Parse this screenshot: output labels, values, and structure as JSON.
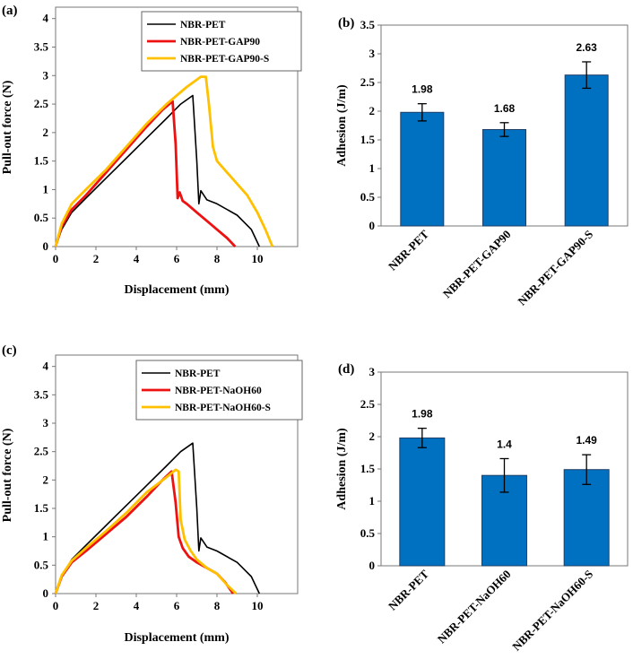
{
  "chart_data": [
    {
      "type": "line",
      "panel_label": "(a)",
      "xlabel": "Displacement (mm)",
      "ylabel": "Pull-out force (N)",
      "xlim": [
        0,
        12
      ],
      "ylim": [
        0,
        4.2
      ],
      "xticks": [
        "0",
        "2",
        "4",
        "6",
        "8",
        "10"
      ],
      "yticks": [
        "0",
        "0.5",
        "1",
        "1.5",
        "2",
        "2.5",
        "3",
        "3.5",
        "4"
      ],
      "series": [
        {
          "name": "NBR-PET",
          "color": "#000000",
          "x": [
            0,
            0.3,
            0.8,
            1.5,
            2.5,
            3.5,
            4.5,
            5.5,
            6.2,
            6.8,
            7.0,
            7.1,
            7.2,
            7.5,
            8.0,
            9.0,
            9.7,
            10.1
          ],
          "y": [
            0,
            0.3,
            0.6,
            0.85,
            1.2,
            1.55,
            1.9,
            2.25,
            2.5,
            2.65,
            1.5,
            0.75,
            0.98,
            0.82,
            0.75,
            0.55,
            0.3,
            0
          ]
        },
        {
          "name": "NBR-PET-GAP90",
          "color": "#ee1111",
          "x": [
            0,
            0.3,
            0.8,
            1.5,
            2.5,
            3.5,
            4.5,
            5.3,
            5.8,
            5.95,
            6.05,
            6.15,
            6.3,
            6.5,
            7.0,
            7.5,
            8.0,
            8.5,
            8.9
          ],
          "y": [
            0,
            0.35,
            0.65,
            0.9,
            1.3,
            1.7,
            2.1,
            2.4,
            2.55,
            1.8,
            0.85,
            0.95,
            0.8,
            0.75,
            0.6,
            0.45,
            0.3,
            0.15,
            0
          ]
        },
        {
          "name": "NBR-PET-GAP90-S",
          "color": "#ffc000",
          "x": [
            0,
            0.3,
            0.8,
            1.5,
            2.5,
            3.5,
            4.5,
            5.5,
            6.5,
            7.2,
            7.45,
            7.6,
            7.8,
            8.0,
            8.5,
            9.0,
            9.5,
            10.0,
            10.4,
            10.75
          ],
          "y": [
            0,
            0.4,
            0.75,
            1.0,
            1.35,
            1.75,
            2.15,
            2.5,
            2.8,
            2.98,
            2.98,
            2.5,
            1.75,
            1.5,
            1.3,
            1.1,
            0.9,
            0.6,
            0.3,
            0
          ]
        }
      ]
    },
    {
      "type": "bar",
      "panel_label": "(b)",
      "ylabel": "Adhesion (J/m)",
      "ylim": [
        0,
        3.5
      ],
      "yticks": [
        "0",
        "0.5",
        "1",
        "1.5",
        "2",
        "2.5",
        "3",
        "3.5"
      ],
      "categories": [
        "NBR-PET",
        "NBR-PET-GAP90",
        "NBR-PET-GAP90-S"
      ],
      "values": [
        1.98,
        1.68,
        2.63
      ],
      "errors": [
        0.15,
        0.12,
        0.23
      ],
      "value_labels": [
        "1.98",
        "1.68",
        "2.63"
      ],
      "color": "#0070c0"
    },
    {
      "type": "line",
      "panel_label": "(c)",
      "xlabel": "Displacement (mm)",
      "ylabel": "Pull-out force (N)",
      "xlim": [
        0,
        12
      ],
      "ylim": [
        0,
        4.2
      ],
      "xticks": [
        "0",
        "2",
        "4",
        "6",
        "8",
        "10"
      ],
      "yticks": [
        "0",
        "0.5",
        "1",
        "1.5",
        "2",
        "2.5",
        "3",
        "3.5",
        "4"
      ],
      "series": [
        {
          "name": "NBR-PET",
          "color": "#000000",
          "x": [
            0,
            0.3,
            0.8,
            1.5,
            2.5,
            3.5,
            4.5,
            5.5,
            6.2,
            6.8,
            7.0,
            7.1,
            7.2,
            7.5,
            8.0,
            9.0,
            9.7,
            10.1
          ],
          "y": [
            0,
            0.3,
            0.6,
            0.85,
            1.2,
            1.55,
            1.9,
            2.25,
            2.5,
            2.65,
            1.5,
            0.75,
            0.98,
            0.82,
            0.75,
            0.55,
            0.3,
            0
          ]
        },
        {
          "name": "NBR-PET-NaOH60",
          "color": "#ee1111",
          "x": [
            0,
            0.3,
            0.8,
            1.5,
            2.5,
            3.5,
            4.5,
            5.3,
            5.75,
            5.95,
            6.1,
            6.3,
            6.6,
            7.0,
            7.5,
            8.0,
            8.4,
            8.8
          ],
          "y": [
            0,
            0.3,
            0.55,
            0.75,
            1.05,
            1.35,
            1.7,
            2.0,
            2.15,
            1.6,
            1.0,
            0.8,
            0.65,
            0.55,
            0.45,
            0.35,
            0.2,
            0
          ]
        },
        {
          "name": "NBR-PET-NaOH60-S",
          "color": "#ffc000",
          "x": [
            0,
            0.3,
            0.8,
            1.5,
            2.5,
            3.5,
            4.5,
            5.5,
            5.95,
            6.1,
            6.2,
            6.4,
            6.7,
            7.0,
            7.5,
            8.0,
            8.5,
            8.95
          ],
          "y": [
            0,
            0.32,
            0.58,
            0.8,
            1.1,
            1.42,
            1.78,
            2.05,
            2.18,
            2.15,
            1.3,
            0.95,
            0.75,
            0.6,
            0.45,
            0.35,
            0.15,
            0
          ]
        }
      ]
    },
    {
      "type": "bar",
      "panel_label": "(d)",
      "ylabel": "Adhesion (J/m)",
      "ylim": [
        0,
        3
      ],
      "yticks": [
        "0",
        "0.5",
        "1",
        "1.5",
        "2",
        "2.5",
        "3"
      ],
      "categories": [
        "NBR-PET",
        "NBR-PET-NaOH60",
        "NBR-PET-NaOH60-S"
      ],
      "values": [
        1.98,
        1.4,
        1.49
      ],
      "errors": [
        0.15,
        0.26,
        0.23
      ],
      "value_labels": [
        "1.98",
        "1.4",
        "1.49"
      ],
      "color": "#0070c0"
    }
  ]
}
